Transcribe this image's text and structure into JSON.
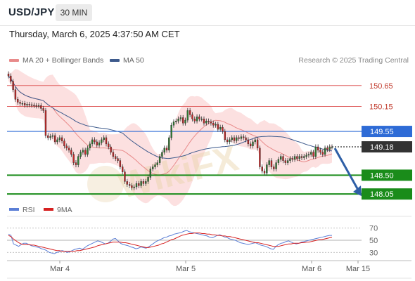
{
  "header": {
    "symbol": "USD/JPY",
    "interval": "30 MIN",
    "datetime": "Thursday, March 6, 2025 4:37:50 AM CET"
  },
  "legend": {
    "ma20_label": "MA 20 + Bollinger Bands",
    "ma50_label": "MA 50",
    "rsi_label": "RSI",
    "rsi_ma_label": "9MA",
    "research": "Research © 2025 Trading Central"
  },
  "watermark": "WikiFX",
  "colors": {
    "ma20": "#e88a8a",
    "bollinger_fill": "#fbd5d5",
    "ma50": "#3d5a8c",
    "resistance": "#e06060",
    "pivot": "#2e6bd6",
    "support": "#1a8c1a",
    "last_price": "#333333",
    "candle_up": "#2e7d32",
    "candle_down": "#c62828",
    "rsi": "#5b7fd6",
    "rsi_ma": "#d62020",
    "arrow": "#2e5fa6"
  },
  "chart_data": [
    {
      "type": "candlestick",
      "xlabel": "",
      "ylabel": "",
      "x_ticks": [
        "Mar 4",
        "Mar 5",
        "Mar 6",
        "Mar 15"
      ],
      "ylim": [
        147.85,
        151.05
      ],
      "levels": [
        {
          "value": 150.65,
          "label": "150.65",
          "kind": "resistance"
        },
        {
          "value": 150.15,
          "label": "150.15",
          "kind": "resistance"
        },
        {
          "value": 149.55,
          "label": "149.55",
          "kind": "pivot"
        },
        {
          "value": 149.18,
          "label": "149.18",
          "kind": "last"
        },
        {
          "value": 148.5,
          "label": "148.50",
          "kind": "support"
        },
        {
          "value": 148.05,
          "label": "148.05",
          "kind": "support"
        }
      ],
      "close": [
        150.88,
        150.75,
        150.55,
        150.32,
        150.25,
        150.22,
        150.22,
        150.18,
        150.2,
        150.19,
        150.18,
        150.17,
        150.16,
        150.17,
        150.1,
        150.05,
        149.45,
        149.4,
        149.43,
        149.45,
        149.3,
        149.35,
        149.4,
        149.32,
        149.2,
        149.15,
        149.1,
        149.0,
        148.8,
        148.75,
        148.95,
        149.05,
        149.1,
        149.0,
        149.15,
        149.25,
        149.35,
        149.3,
        149.22,
        149.28,
        149.35,
        149.4,
        149.25,
        149.18,
        149.05,
        148.95,
        148.9,
        148.85,
        148.7,
        148.58,
        148.35,
        148.28,
        148.25,
        148.2,
        148.22,
        148.3,
        148.25,
        148.35,
        148.3,
        148.35,
        148.45,
        148.65,
        148.7,
        148.75,
        148.8,
        148.95,
        149.05,
        149.15,
        149.1,
        149.4,
        149.7,
        149.78,
        149.8,
        149.85,
        149.88,
        149.75,
        149.82,
        150.05,
        149.95,
        149.85,
        149.8,
        149.9,
        149.85,
        149.85,
        149.75,
        149.8,
        149.78,
        149.75,
        149.7,
        149.72,
        149.6,
        149.65,
        149.55,
        149.35,
        149.3,
        149.35,
        149.4,
        149.33,
        149.4,
        149.38,
        149.42,
        149.4,
        149.35,
        149.25,
        149.2,
        149.3,
        149.35,
        149.15,
        148.7,
        148.6,
        148.55,
        148.75,
        148.85,
        148.7,
        148.65,
        148.8,
        148.88,
        148.95,
        148.85,
        148.8,
        148.85,
        148.9,
        148.88,
        148.95,
        148.9,
        148.95,
        148.92,
        148.95,
        148.98,
        149.0,
        149.05,
        148.95,
        149.18,
        149.1,
        149.05,
        149.0,
        149.15,
        149.12,
        149.18,
        149.18
      ]
    },
    {
      "type": "line",
      "name": "RSI",
      "ylim": [
        20,
        80
      ],
      "y_ticks": [
        70,
        50,
        30
      ],
      "series": [
        {
          "name": "RSI",
          "values": [
            60,
            58,
            44,
            42,
            40,
            43,
            45,
            45,
            43,
            41,
            40,
            39,
            38,
            36,
            35,
            33,
            30,
            29,
            28,
            30,
            31,
            33,
            32,
            30,
            31,
            33,
            35,
            36,
            37,
            35,
            38,
            41,
            43,
            45,
            47,
            49,
            48,
            46,
            44,
            45,
            48,
            52,
            53,
            49,
            45,
            43,
            42,
            41,
            39,
            38,
            36,
            37,
            39,
            38,
            37,
            39,
            42,
            45,
            48,
            50,
            52,
            54,
            55,
            57,
            58,
            60,
            61,
            62,
            63,
            65,
            66,
            64,
            63,
            62,
            61,
            60,
            59,
            58,
            57,
            55,
            54,
            56,
            58,
            59,
            57,
            55,
            54,
            52,
            51,
            50,
            48,
            46,
            45,
            44,
            43,
            44,
            45,
            46,
            44,
            42,
            41,
            40,
            38,
            36,
            35,
            40,
            43,
            45,
            46,
            48,
            49,
            47,
            45,
            44,
            45,
            47,
            48,
            49,
            50,
            51,
            52,
            53,
            54,
            55,
            56,
            57,
            58,
            58
          ]
        },
        {
          "name": "9MA",
          "values": [
            58,
            56,
            52,
            49,
            46,
            44,
            43,
            43,
            43,
            42,
            42,
            41,
            40,
            39,
            38,
            37,
            36,
            35,
            34,
            33,
            33,
            32,
            32,
            32,
            32,
            32,
            32,
            33,
            33,
            34,
            35,
            36,
            37,
            38,
            39,
            41,
            42,
            43,
            44,
            45,
            46,
            47,
            47,
            47,
            47,
            46,
            46,
            45,
            44,
            43,
            42,
            41,
            40,
            39,
            38,
            38,
            39,
            40,
            41,
            42,
            44,
            45,
            47,
            49,
            51,
            52,
            54,
            56,
            58,
            59,
            60,
            61,
            61,
            62,
            62,
            62,
            61,
            61,
            60,
            60,
            59,
            59,
            58,
            58,
            57,
            57,
            56,
            56,
            55,
            54,
            53,
            52,
            51,
            50,
            49,
            48,
            47,
            46,
            46,
            45,
            44,
            43,
            42,
            41,
            40,
            40,
            40,
            41,
            42,
            43,
            44,
            44,
            45,
            45,
            45,
            46,
            46,
            47,
            47,
            48,
            49,
            50,
            51,
            51,
            52,
            53,
            54,
            55
          ]
        }
      ]
    }
  ]
}
